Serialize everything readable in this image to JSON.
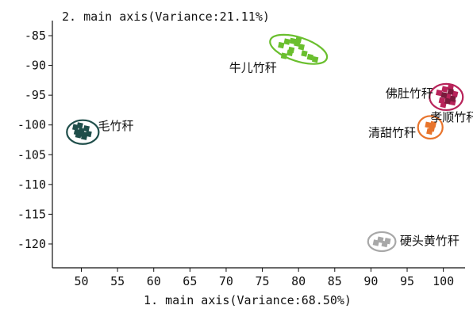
{
  "chart_data": {
    "type": "scatter",
    "title": "2. main axis(Variance:21.11%)",
    "xlabel": "1. main axis(Variance:68.50%)",
    "ylabel": "2. main axis(Variance:21.11%)",
    "xlim": [
      46,
      103
    ],
    "ylim": [
      -124,
      -83
    ],
    "xticks": [
      50,
      55,
      60,
      65,
      70,
      75,
      80,
      85,
      90,
      95,
      100
    ],
    "yticks": [
      -85,
      -90,
      -95,
      -100,
      -105,
      -110,
      -115,
      -120
    ],
    "grid": false,
    "legend": "none",
    "series": [
      {
        "name": "毛竹秆",
        "color": "#1f4e4a",
        "ellipse": {
          "cx": 50.2,
          "cy": -101.2,
          "rx": 2.2,
          "ry": 2.0,
          "angle": 0
        },
        "points": [
          [
            49.2,
            -100.4
          ],
          [
            50.0,
            -101.0
          ],
          [
            49.6,
            -101.7
          ],
          [
            50.7,
            -100.6
          ],
          [
            50.4,
            -102.0
          ],
          [
            49.8,
            -100.1
          ],
          [
            51.0,
            -101.5
          ],
          [
            49.4,
            -101.2
          ],
          [
            50.3,
            -101.6
          ]
        ]
      },
      {
        "name": "牛儿竹秆",
        "color": "#6abf2e",
        "ellipse": {
          "cx": 80.0,
          "cy": -87.3,
          "rx": 4.1,
          "ry": 2.0,
          "angle": 18
        },
        "points": [
          [
            77.6,
            -86.6
          ],
          [
            78.4,
            -86.0
          ],
          [
            79.2,
            -85.9
          ],
          [
            79.8,
            -86.3
          ],
          [
            80.4,
            -86.9
          ],
          [
            79.0,
            -87.4
          ],
          [
            78.0,
            -88.4
          ],
          [
            80.8,
            -88.0
          ],
          [
            81.6,
            -88.6
          ],
          [
            82.3,
            -89.0
          ],
          [
            78.8,
            -87.9
          ],
          [
            80.0,
            -85.7
          ]
        ]
      },
      {
        "name": "佛肚竹秆",
        "color": "#b8235a",
        "ellipse": {
          "cx": 100.4,
          "cy": -95.3,
          "rx": 2.3,
          "ry": 2.2,
          "angle": 0
        },
        "points": [
          [
            99.4,
            -94.6
          ],
          [
            100.2,
            -94.0
          ],
          [
            101.0,
            -93.7
          ],
          [
            100.6,
            -95.2
          ],
          [
            99.8,
            -95.9
          ],
          [
            101.3,
            -96.2
          ],
          [
            100.0,
            -96.6
          ],
          [
            101.6,
            -94.8
          ]
        ]
      },
      {
        "name": "孝顺竹秆",
        "color": "#7a1a3c",
        "ellipse": null,
        "points": [
          [
            100.6,
            -96.0
          ],
          [
            101.3,
            -95.6
          ],
          [
            100.1,
            -95.0
          ],
          [
            101.0,
            -94.4
          ]
        ]
      },
      {
        "name": "清甜竹秆",
        "color": "#e8742c",
        "ellipse": {
          "cx": 98.2,
          "cy": -100.4,
          "rx": 1.7,
          "ry": 1.9,
          "angle": 0
        },
        "points": [
          [
            97.9,
            -100.0
          ],
          [
            98.4,
            -100.6
          ],
          [
            98.1,
            -101.1
          ],
          [
            98.6,
            -99.9
          ]
        ]
      },
      {
        "name": "硬头黄竹秆",
        "color": "#a8a8a8",
        "ellipse": {
          "cx": 91.5,
          "cy": -119.6,
          "rx": 1.9,
          "ry": 1.6,
          "angle": 0
        },
        "points": [
          [
            90.7,
            -119.8
          ],
          [
            91.3,
            -119.3
          ],
          [
            91.9,
            -120.0
          ],
          [
            92.3,
            -119.5
          ]
        ]
      }
    ],
    "labels": [
      {
        "text": "毛竹秆",
        "x": 52.3,
        "y": -100.2,
        "anchor": "start"
      },
      {
        "text": "牛儿竹秆",
        "x": 77.0,
        "y": -90.4,
        "anchor": "end"
      },
      {
        "text": "佛肚竹秆",
        "x": 98.6,
        "y": -94.7,
        "anchor": "end"
      },
      {
        "text": "孝顺竹秆",
        "x": 101.5,
        "y": -98.7,
        "anchor": "middle"
      },
      {
        "text": "清甜竹秆",
        "x": 96.2,
        "y": -101.3,
        "anchor": "end"
      },
      {
        "text": "硬头黄竹秆",
        "x": 94.0,
        "y": -119.5,
        "anchor": "start"
      }
    ]
  }
}
